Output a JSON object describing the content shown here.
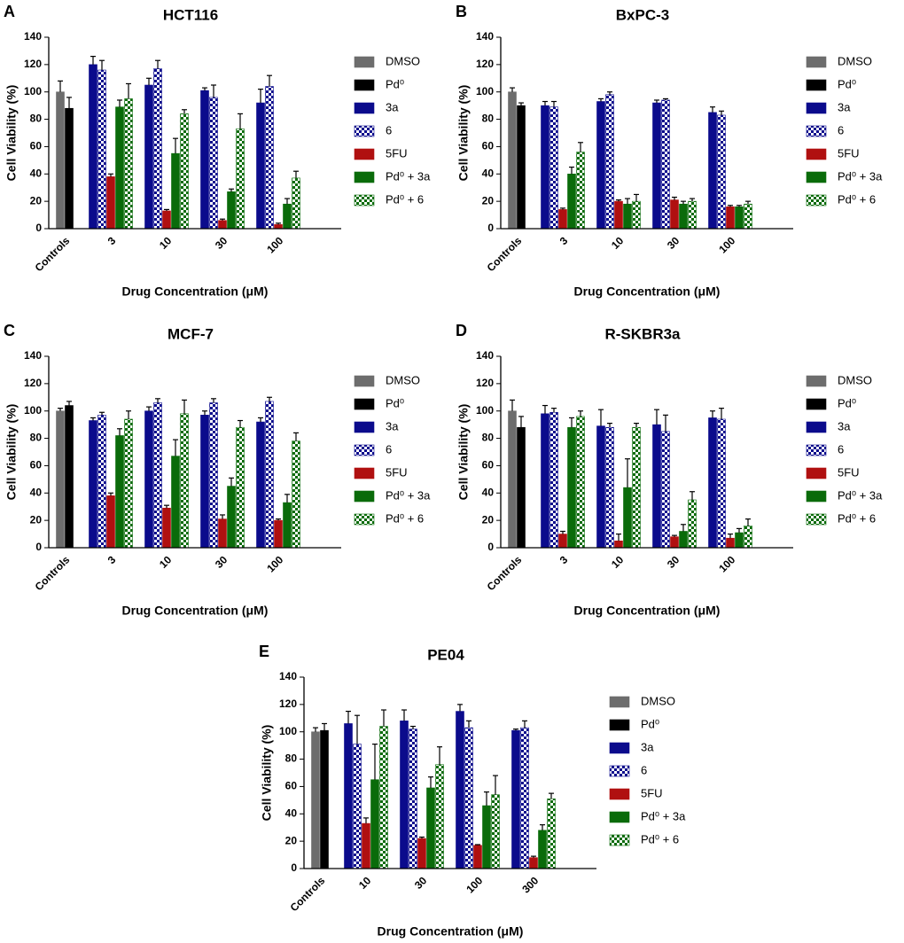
{
  "chart_data": [
    {
      "type": "bar",
      "panel_label": "A",
      "title": "HCT116",
      "xlabel": "Drug Concentration (μM)",
      "ylabel": "Cell Viability (%)",
      "categories": [
        "Controls",
        "3",
        "10",
        "30",
        "100"
      ],
      "ylim": [
        0,
        140
      ],
      "yticks": [
        0,
        20,
        40,
        60,
        80,
        100,
        120,
        140
      ],
      "series": [
        {
          "name": "DMSO",
          "color": "#6d6d6d",
          "values": [
            100,
            null,
            null,
            null,
            null
          ],
          "errors": [
            8,
            null,
            null,
            null,
            null
          ]
        },
        {
          "name": "Pd⁰",
          "color": "#000000",
          "values": [
            88,
            null,
            null,
            null,
            null
          ],
          "errors": [
            8,
            null,
            null,
            null,
            null
          ]
        },
        {
          "name": "3a",
          "color": "#0b0b8c",
          "values": [
            null,
            120,
            105,
            101,
            92
          ],
          "errors": [
            null,
            6,
            5,
            2,
            10
          ]
        },
        {
          "name": "6",
          "color": "#0b0b8c",
          "pattern": "checker",
          "values": [
            null,
            116,
            117,
            96,
            104
          ],
          "errors": [
            null,
            7,
            6,
            9,
            8
          ]
        },
        {
          "name": "5FU",
          "color": "#b01010",
          "values": [
            null,
            38,
            13,
            6,
            3
          ],
          "errors": [
            null,
            2,
            1,
            1,
            1
          ]
        },
        {
          "name": "Pd⁰ + 3a",
          "color": "#0a6b0a",
          "values": [
            null,
            89,
            55,
            27,
            18
          ],
          "errors": [
            null,
            5,
            11,
            2,
            4
          ]
        },
        {
          "name": "Pd⁰ + 6",
          "color": "#0a6b0a",
          "pattern": "checker",
          "values": [
            null,
            95,
            84,
            73,
            37
          ],
          "errors": [
            null,
            11,
            3,
            11,
            5
          ]
        }
      ]
    },
    {
      "type": "bar",
      "panel_label": "B",
      "title": "BxPC-3",
      "xlabel": "Drug Concentration (μM)",
      "ylabel": "Cell Viability (%)",
      "categories": [
        "Controls",
        "3",
        "10",
        "30",
        "100"
      ],
      "ylim": [
        0,
        140
      ],
      "yticks": [
        0,
        20,
        40,
        60,
        80,
        100,
        120,
        140
      ],
      "series": [
        {
          "name": "DMSO",
          "color": "#6d6d6d",
          "values": [
            100,
            null,
            null,
            null,
            null
          ],
          "errors": [
            3,
            null,
            null,
            null,
            null
          ]
        },
        {
          "name": "Pd⁰",
          "color": "#000000",
          "values": [
            90,
            null,
            null,
            null,
            null
          ],
          "errors": [
            2,
            null,
            null,
            null,
            null
          ]
        },
        {
          "name": "3a",
          "color": "#0b0b8c",
          "values": [
            null,
            90,
            93,
            92,
            85
          ],
          "errors": [
            null,
            3,
            2,
            2,
            4
          ]
        },
        {
          "name": "6",
          "color": "#0b0b8c",
          "pattern": "checker",
          "values": [
            null,
            89,
            98,
            94,
            83
          ],
          "errors": [
            null,
            4,
            2,
            1,
            3
          ]
        },
        {
          "name": "5FU",
          "color": "#b01010",
          "values": [
            null,
            14,
            20,
            21,
            16
          ],
          "errors": [
            null,
            1,
            1,
            2,
            1
          ]
        },
        {
          "name": "Pd⁰ + 3a",
          "color": "#0a6b0a",
          "values": [
            null,
            40,
            18,
            18,
            16
          ],
          "errors": [
            null,
            5,
            4,
            2,
            1
          ]
        },
        {
          "name": "Pd⁰ + 6",
          "color": "#0a6b0a",
          "pattern": "checker",
          "values": [
            null,
            56,
            20,
            20,
            18
          ],
          "errors": [
            null,
            7,
            5,
            2,
            2
          ]
        }
      ]
    },
    {
      "type": "bar",
      "panel_label": "C",
      "title": "MCF-7",
      "xlabel": "Drug Concentration (μM)",
      "ylabel": "Cell Viability (%)",
      "categories": [
        "Controls",
        "3",
        "10",
        "30",
        "100"
      ],
      "ylim": [
        0,
        140
      ],
      "yticks": [
        0,
        20,
        40,
        60,
        80,
        100,
        120,
        140
      ],
      "series": [
        {
          "name": "DMSO",
          "color": "#6d6d6d",
          "values": [
            100,
            null,
            null,
            null,
            null
          ],
          "errors": [
            2,
            null,
            null,
            null,
            null
          ]
        },
        {
          "name": "Pd⁰",
          "color": "#000000",
          "values": [
            104,
            null,
            null,
            null,
            null
          ],
          "errors": [
            3,
            null,
            null,
            null,
            null
          ]
        },
        {
          "name": "3a",
          "color": "#0b0b8c",
          "values": [
            null,
            93,
            100,
            97,
            92
          ],
          "errors": [
            null,
            2,
            3,
            3,
            3
          ]
        },
        {
          "name": "6",
          "color": "#0b0b8c",
          "pattern": "checker",
          "values": [
            null,
            97,
            106,
            106,
            107
          ],
          "errors": [
            null,
            2,
            3,
            3,
            3
          ]
        },
        {
          "name": "5FU",
          "color": "#b01010",
          "values": [
            null,
            38,
            29,
            21,
            20
          ],
          "errors": [
            null,
            2,
            2,
            3,
            1
          ]
        },
        {
          "name": "Pd⁰ + 3a",
          "color": "#0a6b0a",
          "values": [
            null,
            82,
            67,
            45,
            33
          ],
          "errors": [
            null,
            5,
            12,
            6,
            6
          ]
        },
        {
          "name": "Pd⁰ + 6",
          "color": "#0a6b0a",
          "pattern": "checker",
          "values": [
            null,
            94,
            98,
            88,
            78
          ],
          "errors": [
            null,
            6,
            10,
            5,
            6
          ]
        }
      ]
    },
    {
      "type": "bar",
      "panel_label": "D",
      "title": "R-SKBR3a",
      "xlabel": "Drug Concentration (μM)",
      "ylabel": "Cell Viability (%)",
      "categories": [
        "Controls",
        "3",
        "10",
        "30",
        "100"
      ],
      "ylim": [
        0,
        140
      ],
      "yticks": [
        0,
        20,
        40,
        60,
        80,
        100,
        120,
        140
      ],
      "series": [
        {
          "name": "DMSO",
          "color": "#6d6d6d",
          "values": [
            100,
            null,
            null,
            null,
            null
          ],
          "errors": [
            8,
            null,
            null,
            null,
            null
          ]
        },
        {
          "name": "Pd⁰",
          "color": "#000000",
          "values": [
            88,
            null,
            null,
            null,
            null
          ],
          "errors": [
            8,
            null,
            null,
            null,
            null
          ]
        },
        {
          "name": "3a",
          "color": "#0b0b8c",
          "values": [
            null,
            98,
            89,
            90,
            95
          ],
          "errors": [
            null,
            6,
            12,
            11,
            5
          ]
        },
        {
          "name": "6",
          "color": "#0b0b8c",
          "pattern": "checker",
          "values": [
            null,
            99,
            88,
            85,
            94
          ],
          "errors": [
            null,
            3,
            3,
            12,
            8
          ]
        },
        {
          "name": "5FU",
          "color": "#b01010",
          "values": [
            null,
            10,
            5,
            8,
            7
          ],
          "errors": [
            null,
            2,
            5,
            1,
            3
          ]
        },
        {
          "name": "Pd⁰ + 3a",
          "color": "#0a6b0a",
          "values": [
            null,
            88,
            44,
            12,
            11
          ],
          "errors": [
            null,
            7,
            21,
            5,
            3
          ]
        },
        {
          "name": "Pd⁰ + 6",
          "color": "#0a6b0a",
          "pattern": "checker",
          "values": [
            null,
            96,
            88,
            35,
            16
          ],
          "errors": [
            null,
            4,
            3,
            6,
            5
          ]
        }
      ]
    },
    {
      "type": "bar",
      "panel_label": "E",
      "title": "PE04",
      "xlabel": "Drug Concentration (μM)",
      "ylabel": "Cell Viability (%)",
      "categories": [
        "Controls",
        "10",
        "30",
        "100",
        "300"
      ],
      "ylim": [
        0,
        140
      ],
      "yticks": [
        0,
        20,
        40,
        60,
        80,
        100,
        120,
        140
      ],
      "series": [
        {
          "name": "DMSO",
          "color": "#6d6d6d",
          "values": [
            100,
            null,
            null,
            null,
            null
          ],
          "errors": [
            3,
            null,
            null,
            null,
            null
          ]
        },
        {
          "name": "Pd⁰",
          "color": "#000000",
          "values": [
            101,
            null,
            null,
            null,
            null
          ],
          "errors": [
            5,
            null,
            null,
            null,
            null
          ]
        },
        {
          "name": "3a",
          "color": "#0b0b8c",
          "values": [
            null,
            106,
            108,
            115,
            101
          ],
          "errors": [
            null,
            9,
            8,
            5,
            1
          ]
        },
        {
          "name": "6",
          "color": "#0b0b8c",
          "pattern": "checker",
          "values": [
            null,
            91,
            102,
            103,
            103
          ],
          "errors": [
            null,
            21,
            2,
            5,
            5
          ]
        },
        {
          "name": "5FU",
          "color": "#b01010",
          "values": [
            null,
            33,
            22,
            17,
            8
          ],
          "errors": [
            null,
            4,
            1,
            0.5,
            1
          ]
        },
        {
          "name": "Pd⁰ + 3a",
          "color": "#0a6b0a",
          "values": [
            null,
            65,
            59,
            46,
            28
          ],
          "errors": [
            null,
            26,
            8,
            10,
            4
          ]
        },
        {
          "name": "Pd⁰ + 6",
          "color": "#0a6b0a",
          "pattern": "checker",
          "values": [
            null,
            104,
            76,
            54,
            51
          ],
          "errors": [
            null,
            12,
            13,
            14,
            4
          ]
        }
      ]
    }
  ]
}
